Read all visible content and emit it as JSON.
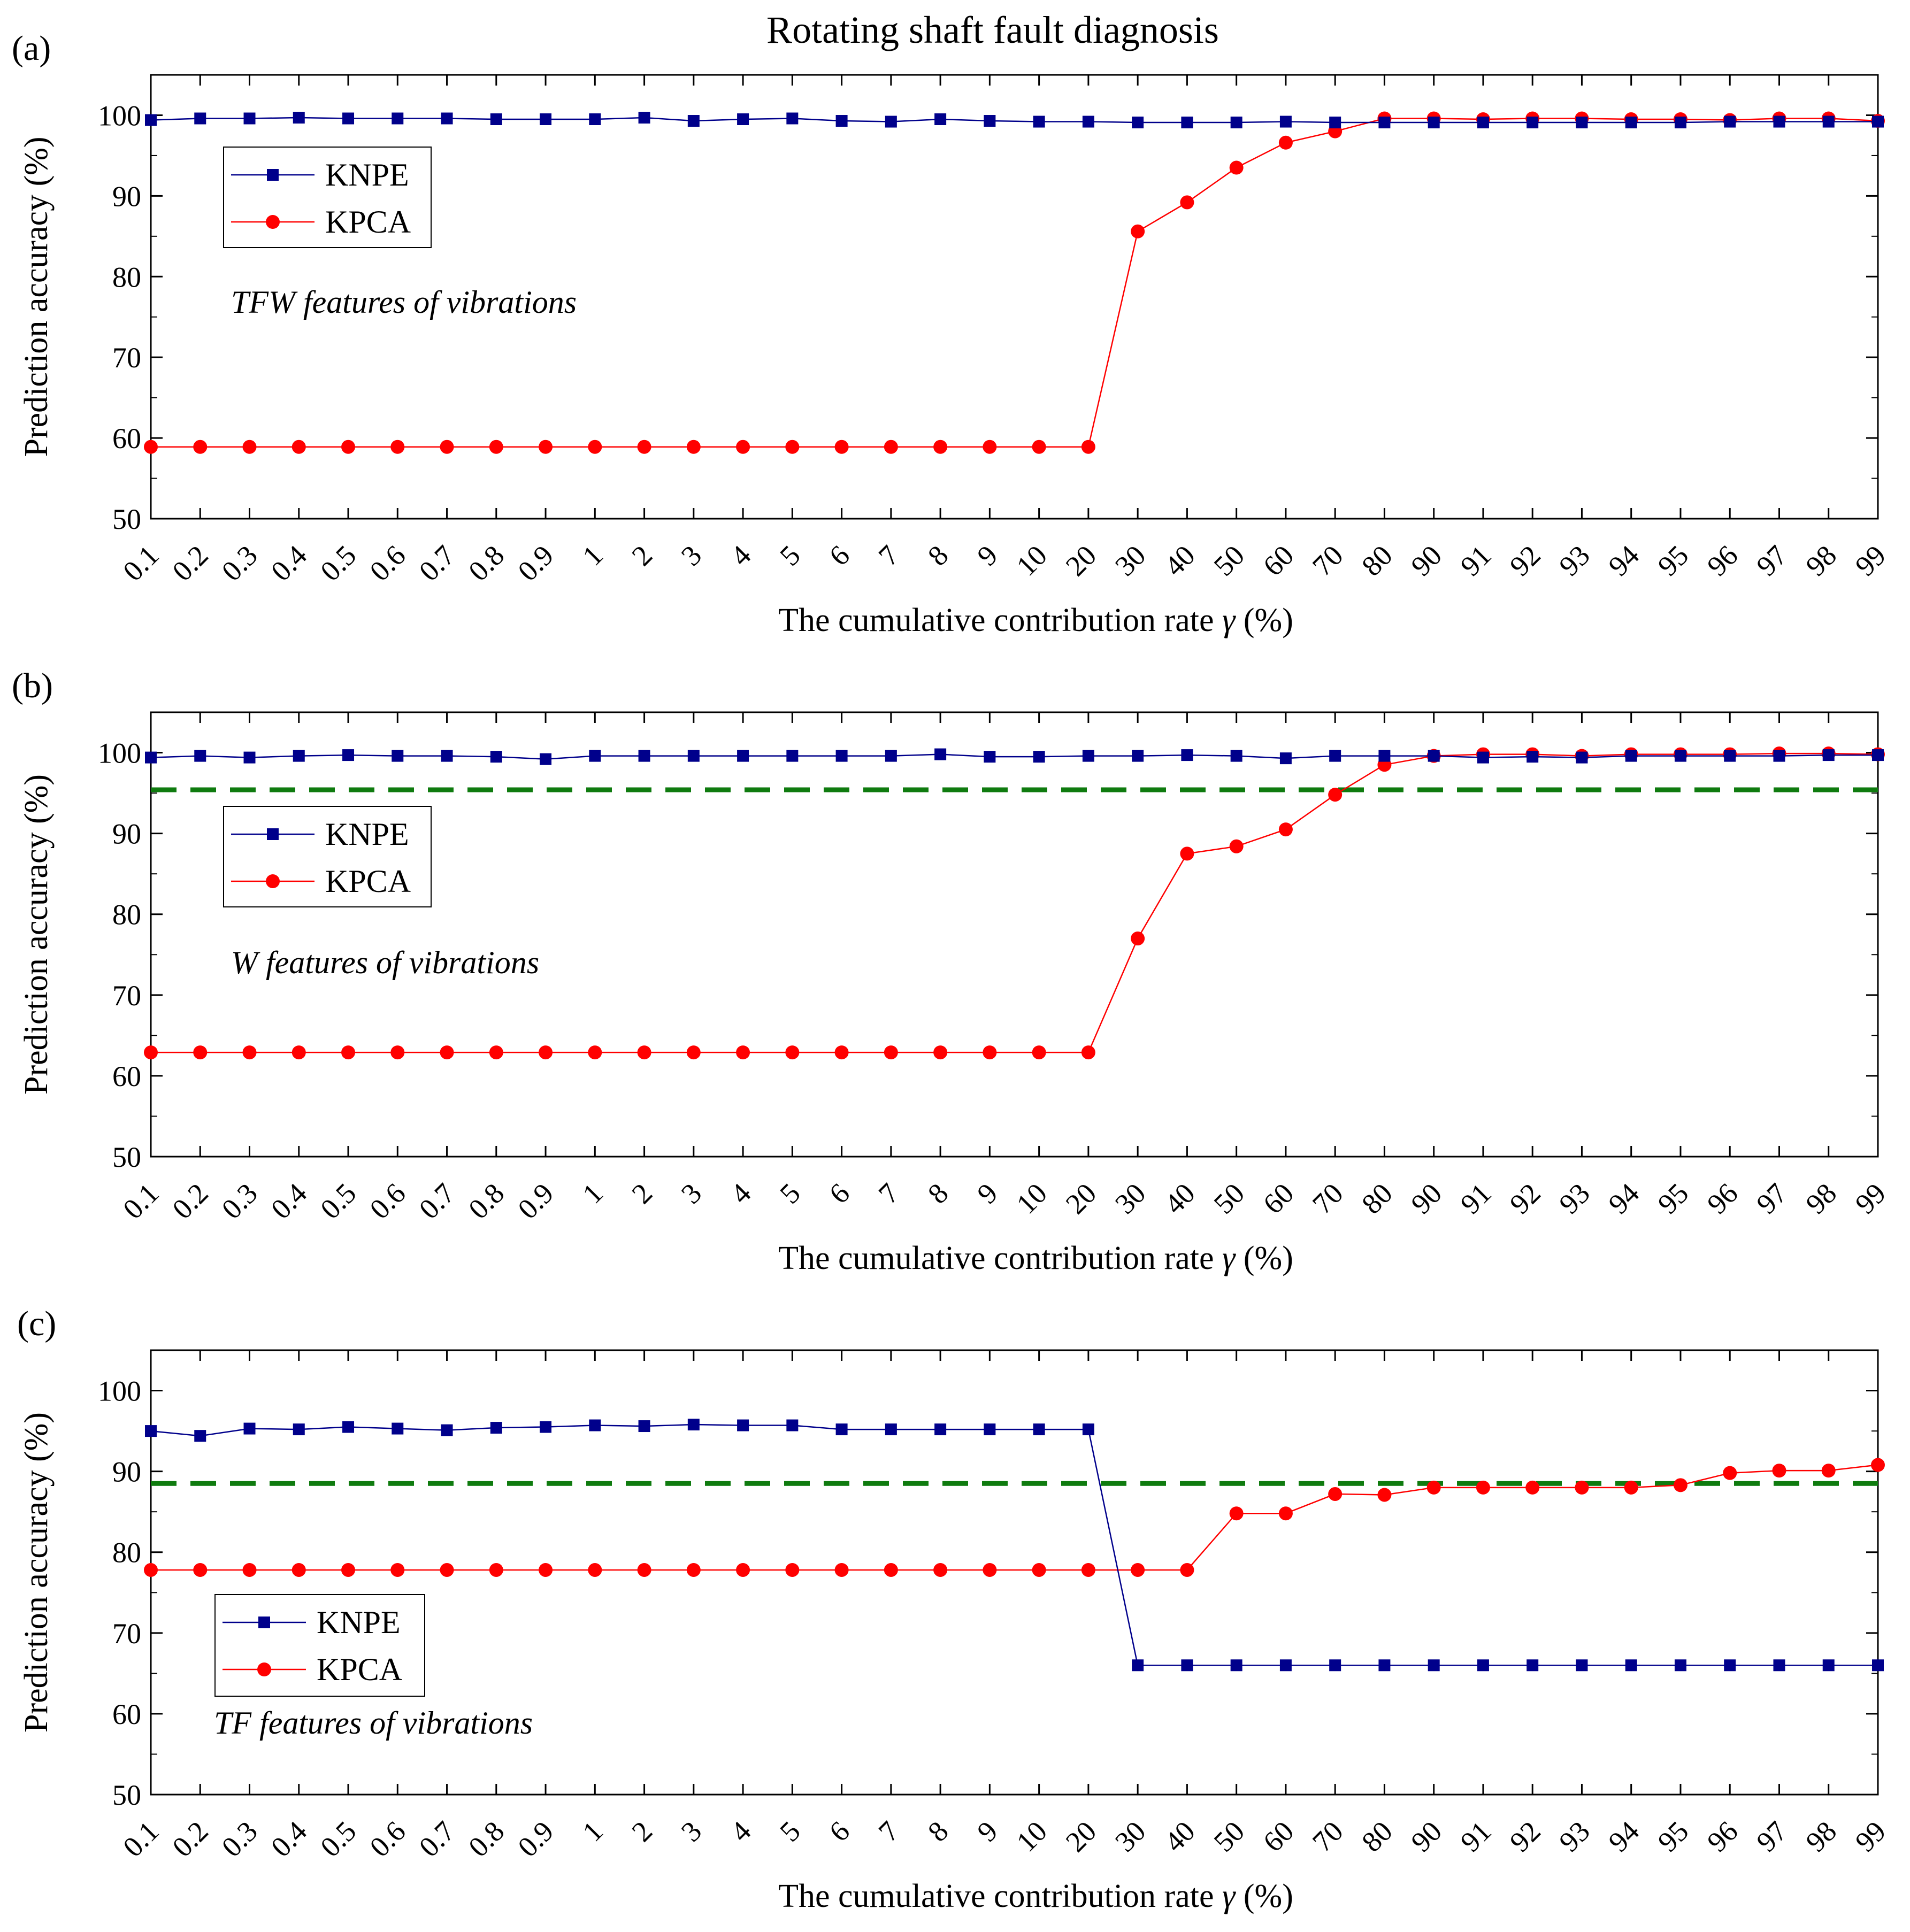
{
  "figure": {
    "title": "Rotating shaft fault diagnosis"
  },
  "chart_data": [
    {
      "type": "line",
      "panel_label": "(a)",
      "annotation": "TFW features of vibrations",
      "xlabel_prefix": "The cumulative contribution rate ",
      "xlabel_symbol": "γ",
      "xlabel_suffix": " (%)",
      "ylabel": "Prediction accuracy (%)",
      "ylim": [
        50,
        105
      ],
      "yticks": [
        50,
        60,
        70,
        80,
        90,
        100
      ],
      "legend_position": "upper-left",
      "categories": [
        "0.1",
        "0.2",
        "0.3",
        "0.4",
        "0.5",
        "0.6",
        "0.7",
        "0.8",
        "0.9",
        "1",
        "2",
        "3",
        "4",
        "5",
        "6",
        "7",
        "8",
        "9",
        "10",
        "20",
        "30",
        "40",
        "50",
        "60",
        "70",
        "80",
        "90",
        "91",
        "92",
        "93",
        "94",
        "95",
        "96",
        "97",
        "98",
        "99"
      ],
      "threshold": null,
      "series": [
        {
          "name": "KNPE",
          "color": "#00008b",
          "marker": "square",
          "values": [
            99.4,
            99.6,
            99.6,
            99.7,
            99.6,
            99.6,
            99.6,
            99.5,
            99.5,
            99.5,
            99.7,
            99.3,
            99.5,
            99.6,
            99.3,
            99.2,
            99.5,
            99.3,
            99.2,
            99.2,
            99.1,
            99.1,
            99.1,
            99.2,
            99.1,
            99.1,
            99.1,
            99.1,
            99.1,
            99.1,
            99.1,
            99.1,
            99.2,
            99.2,
            99.2,
            99.2
          ]
        },
        {
          "name": "KPCA",
          "color": "#ff0000",
          "marker": "circle",
          "values": [
            58.9,
            58.9,
            58.9,
            58.9,
            58.9,
            58.9,
            58.9,
            58.9,
            58.9,
            58.9,
            58.9,
            58.9,
            58.9,
            58.9,
            58.9,
            58.9,
            58.9,
            58.9,
            58.9,
            58.9,
            85.6,
            89.2,
            93.5,
            96.6,
            98.0,
            99.6,
            99.6,
            99.5,
            99.6,
            99.6,
            99.5,
            99.5,
            99.4,
            99.6,
            99.6,
            99.3
          ]
        }
      ]
    },
    {
      "type": "line",
      "panel_label": "(b)",
      "annotation": "W features of vibrations",
      "xlabel_prefix": "The cumulative contribution rate ",
      "xlabel_symbol": "γ",
      "xlabel_suffix": " (%)",
      "ylabel": "Prediction accuracy (%)",
      "ylim": [
        50,
        105
      ],
      "yticks": [
        50,
        60,
        70,
        80,
        90,
        100
      ],
      "legend_position": "upper-left",
      "categories": [
        "0.1",
        "0.2",
        "0.3",
        "0.4",
        "0.5",
        "0.6",
        "0.7",
        "0.8",
        "0.9",
        "1",
        "2",
        "3",
        "4",
        "5",
        "6",
        "7",
        "8",
        "9",
        "10",
        "20",
        "30",
        "40",
        "50",
        "60",
        "70",
        "80",
        "90",
        "91",
        "92",
        "93",
        "94",
        "95",
        "96",
        "97",
        "98",
        "99"
      ],
      "threshold": 95.4,
      "series": [
        {
          "name": "KNPE",
          "color": "#00008b",
          "marker": "square",
          "values": [
            99.4,
            99.6,
            99.4,
            99.6,
            99.7,
            99.6,
            99.6,
            99.5,
            99.2,
            99.6,
            99.6,
            99.6,
            99.6,
            99.6,
            99.6,
            99.6,
            99.8,
            99.5,
            99.5,
            99.6,
            99.6,
            99.7,
            99.6,
            99.3,
            99.6,
            99.6,
            99.6,
            99.4,
            99.5,
            99.4,
            99.6,
            99.6,
            99.6,
            99.6,
            99.7,
            99.7
          ]
        },
        {
          "name": "KPCA",
          "color": "#ff0000",
          "marker": "circle",
          "values": [
            62.9,
            62.9,
            62.9,
            62.9,
            62.9,
            62.9,
            62.9,
            62.9,
            62.9,
            62.9,
            62.9,
            62.9,
            62.9,
            62.9,
            62.9,
            62.9,
            62.9,
            62.9,
            62.9,
            62.9,
            77.0,
            87.5,
            88.4,
            90.5,
            94.8,
            98.5,
            99.6,
            99.8,
            99.8,
            99.6,
            99.8,
            99.8,
            99.8,
            99.9,
            99.9,
            99.8
          ]
        }
      ]
    },
    {
      "type": "line",
      "panel_label": "(c)",
      "annotation": "TF features of vibrations",
      "xlabel_prefix": "The cumulative contribution rate ",
      "xlabel_symbol": "γ",
      "xlabel_suffix": " (%)",
      "ylabel": "Prediction accuracy (%)",
      "ylim": [
        50,
        105
      ],
      "yticks": [
        50,
        60,
        70,
        80,
        90,
        100
      ],
      "legend_position": "lower-left",
      "categories": [
        "0.1",
        "0.2",
        "0.3",
        "0.4",
        "0.5",
        "0.6",
        "0.7",
        "0.8",
        "0.9",
        "1",
        "2",
        "3",
        "4",
        "5",
        "6",
        "7",
        "8",
        "9",
        "10",
        "20",
        "30",
        "40",
        "50",
        "60",
        "70",
        "80",
        "90",
        "91",
        "92",
        "93",
        "94",
        "95",
        "96",
        "97",
        "98",
        "99"
      ],
      "threshold": 88.5,
      "series": [
        {
          "name": "KNPE",
          "color": "#00008b",
          "marker": "square",
          "values": [
            95.0,
            94.4,
            95.3,
            95.2,
            95.5,
            95.3,
            95.1,
            95.4,
            95.5,
            95.7,
            95.6,
            95.8,
            95.7,
            95.7,
            95.2,
            95.2,
            95.2,
            95.2,
            95.2,
            95.2,
            66.0,
            66.0,
            66.0,
            66.0,
            66.0,
            66.0,
            66.0,
            66.0,
            66.0,
            66.0,
            66.0,
            66.0,
            66.0,
            66.0,
            66.0,
            66.0
          ]
        },
        {
          "name": "KPCA",
          "color": "#ff0000",
          "marker": "circle",
          "values": [
            77.8,
            77.8,
            77.8,
            77.8,
            77.8,
            77.8,
            77.8,
            77.8,
            77.8,
            77.8,
            77.8,
            77.8,
            77.8,
            77.8,
            77.8,
            77.8,
            77.8,
            77.8,
            77.8,
            77.8,
            77.8,
            77.8,
            84.8,
            84.8,
            87.2,
            87.1,
            88.0,
            88.0,
            88.0,
            88.0,
            88.0,
            88.3,
            89.8,
            90.1,
            90.1,
            90.8
          ]
        }
      ]
    }
  ]
}
